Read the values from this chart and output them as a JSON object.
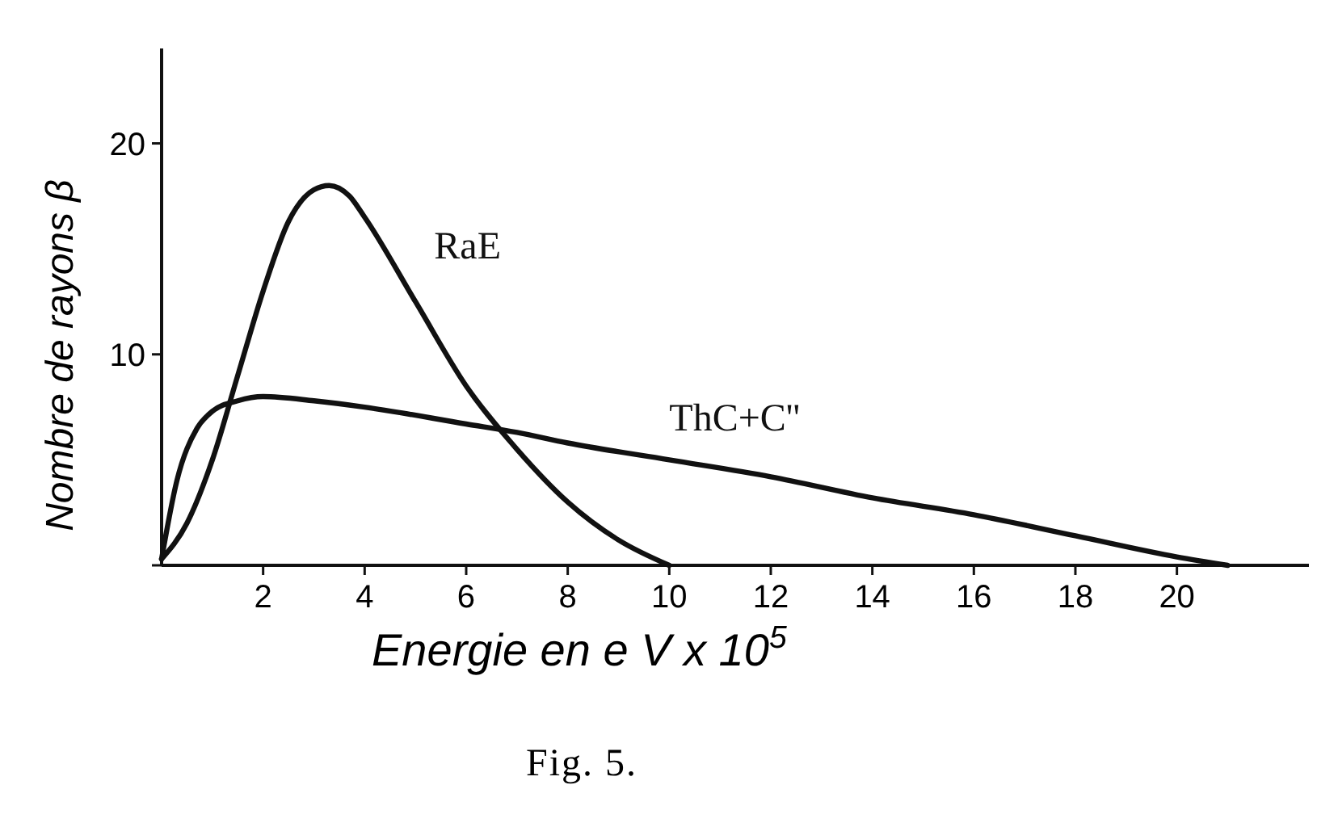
{
  "chart_data": {
    "type": "line",
    "title": "Fig. 5.",
    "xlabel": "Energie en e V x 10$^{5}$",
    "ylabel": "Nombre de rayons β",
    "xlim": [
      0,
      22.6
    ],
    "ylim": [
      0,
      24.5
    ],
    "xticks": [
      2,
      4,
      6,
      8,
      10,
      12,
      14,
      16,
      18,
      20
    ],
    "yticks": [
      {
        "value": 0,
        "label": null
      },
      10,
      20
    ],
    "grid": false,
    "legend": false,
    "marker": "none",
    "line_style": "solid",
    "series": [
      {
        "name": "RaE",
        "color": "#111111",
        "x": [
          0,
          0.5,
          1,
          1.5,
          2,
          2.5,
          3,
          3.3,
          3.7,
          4,
          5,
          6,
          7,
          8,
          9,
          10
        ],
        "values": [
          0.3,
          2,
          5,
          9,
          13,
          16.3,
          17.8,
          18,
          17.5,
          16.5,
          12.5,
          8.5,
          5.5,
          3,
          1.2,
          0
        ]
      },
      {
        "name": "ThC+C''",
        "color": "#111111",
        "x": [
          0,
          0.3,
          0.7,
          1,
          1.5,
          2,
          3,
          4,
          6,
          7,
          8,
          10,
          12,
          14,
          16,
          18,
          20,
          21
        ],
        "values": [
          0.3,
          4,
          6.5,
          7.3,
          7.8,
          8,
          7.8,
          7.5,
          6.7,
          6.3,
          5.8,
          5,
          4.2,
          3.2,
          2.4,
          1.4,
          0.4,
          0
        ]
      }
    ]
  }
}
